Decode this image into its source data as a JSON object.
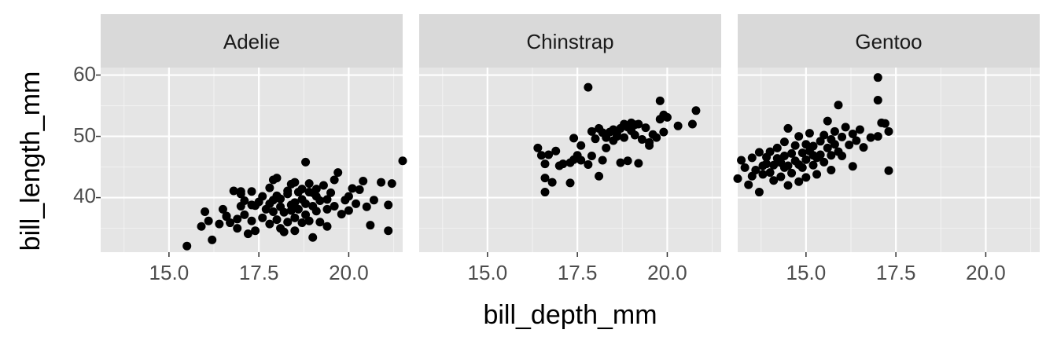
{
  "chart_data": {
    "type": "scatter",
    "xlabel": "bill_depth_mm",
    "ylabel": "bill_length_mm",
    "xlim": [
      13.1,
      21.5
    ],
    "ylim": [
      31.1,
      60.2
    ],
    "x_ticks": [
      15.0,
      17.5,
      20.0
    ],
    "x_tick_labels": [
      "15.0",
      "17.5",
      "20.0"
    ],
    "y_ticks": [
      40,
      50,
      60
    ],
    "y_tick_labels": [
      "40",
      "50",
      "60"
    ],
    "grid": true,
    "panel_background": "#e5e5e5",
    "strip_background": "#d9d9d9",
    "point_color": "#000000",
    "panels": [
      {
        "name": "Adelie",
        "points": [
          [
            15.5,
            32.1
          ],
          [
            15.9,
            35.3
          ],
          [
            16.0,
            37.7
          ],
          [
            16.1,
            36.2
          ],
          [
            16.2,
            33.1
          ],
          [
            16.4,
            35.7
          ],
          [
            16.5,
            38.1
          ],
          [
            16.6,
            37.0
          ],
          [
            16.7,
            35.9
          ],
          [
            16.8,
            41.1
          ],
          [
            16.9,
            36.5
          ],
          [
            17.0,
            38.6
          ],
          [
            17.0,
            40.6
          ],
          [
            17.1,
            39.5
          ],
          [
            17.1,
            37.2
          ],
          [
            17.2,
            34.1
          ],
          [
            17.3,
            36.2
          ],
          [
            17.3,
            41.0
          ],
          [
            17.4,
            38.7
          ],
          [
            17.4,
            34.6
          ],
          [
            17.5,
            39.3
          ],
          [
            17.6,
            36.7
          ],
          [
            17.6,
            40.2
          ],
          [
            17.7,
            38.1
          ],
          [
            17.8,
            35.7
          ],
          [
            17.8,
            41.6
          ],
          [
            17.9,
            39.6
          ],
          [
            17.9,
            37.7
          ],
          [
            18.0,
            36.4
          ],
          [
            18.0,
            40.3
          ],
          [
            18.0,
            43.2
          ],
          [
            18.1,
            38.5
          ],
          [
            18.1,
            35.0
          ],
          [
            18.1,
            39.8
          ],
          [
            18.2,
            37.6
          ],
          [
            18.2,
            34.4
          ],
          [
            18.3,
            40.6
          ],
          [
            18.3,
            41.1
          ],
          [
            18.3,
            36.0
          ],
          [
            18.4,
            38.8
          ],
          [
            18.4,
            37.9
          ],
          [
            18.5,
            42.5
          ],
          [
            18.5,
            39.2
          ],
          [
            18.5,
            36.7
          ],
          [
            18.6,
            40.9
          ],
          [
            18.6,
            38.1
          ],
          [
            18.7,
            35.9
          ],
          [
            18.7,
            39.7
          ],
          [
            18.7,
            41.4
          ],
          [
            18.8,
            37.2
          ],
          [
            18.8,
            45.8
          ],
          [
            18.8,
            39.0
          ],
          [
            18.9,
            36.2
          ],
          [
            18.9,
            42.3
          ],
          [
            19.0,
            38.6
          ],
          [
            19.0,
            33.5
          ],
          [
            19.1,
            40.2
          ],
          [
            19.1,
            41.4
          ],
          [
            19.1,
            37.8
          ],
          [
            19.2,
            36.0
          ],
          [
            19.2,
            39.5
          ],
          [
            19.3,
            42.0
          ],
          [
            19.4,
            38.1
          ],
          [
            19.4,
            35.3
          ],
          [
            19.5,
            40.8
          ],
          [
            19.6,
            38.6
          ],
          [
            19.6,
            42.9
          ],
          [
            19.7,
            44.1
          ],
          [
            19.8,
            37.3
          ],
          [
            19.9,
            39.6
          ],
          [
            20.0,
            40.2
          ],
          [
            20.0,
            37.9
          ],
          [
            20.1,
            41.5
          ],
          [
            20.2,
            39.0
          ],
          [
            20.3,
            41.3
          ],
          [
            20.4,
            42.7
          ],
          [
            20.5,
            38.5
          ],
          [
            20.6,
            35.5
          ],
          [
            20.7,
            39.6
          ],
          [
            20.9,
            42.5
          ],
          [
            21.1,
            38.8
          ],
          [
            21.1,
            34.6
          ],
          [
            21.2,
            42.3
          ],
          [
            21.5,
            46.0
          ],
          [
            17.0,
            41.0
          ],
          [
            17.9,
            42.9
          ],
          [
            18.4,
            42.2
          ],
          [
            19.0,
            40.8
          ],
          [
            16.6,
            36.9
          ],
          [
            17.3,
            38.8
          ],
          [
            18.5,
            34.6
          ],
          [
            19.4,
            39.7
          ],
          [
            17.8,
            39.0
          ],
          [
            18.9,
            40.9
          ],
          [
            16.9,
            35.0
          ]
        ]
      },
      {
        "name": "Chinstrap",
        "points": [
          [
            16.4,
            48.1
          ],
          [
            16.5,
            46.9
          ],
          [
            16.6,
            45.5
          ],
          [
            16.6,
            43.2
          ],
          [
            16.6,
            40.9
          ],
          [
            16.7,
            47.0
          ],
          [
            16.8,
            42.5
          ],
          [
            16.9,
            47.6
          ],
          [
            17.1,
            45.5
          ],
          [
            17.3,
            45.7
          ],
          [
            17.3,
            42.4
          ],
          [
            17.4,
            46.2
          ],
          [
            17.4,
            49.7
          ],
          [
            17.5,
            46.9
          ],
          [
            17.6,
            48.5
          ],
          [
            17.6,
            46.1
          ],
          [
            17.8,
            58.0
          ],
          [
            17.8,
            45.4
          ],
          [
            17.9,
            50.8
          ],
          [
            17.9,
            46.8
          ],
          [
            18.0,
            49.6
          ],
          [
            18.1,
            51.3
          ],
          [
            18.1,
            43.5
          ],
          [
            18.2,
            50.6
          ],
          [
            18.2,
            46.1
          ],
          [
            18.3,
            48.1
          ],
          [
            18.4,
            50.7
          ],
          [
            18.5,
            51.1
          ],
          [
            18.5,
            49.3
          ],
          [
            18.6,
            50.5
          ],
          [
            18.7,
            45.7
          ],
          [
            18.7,
            51.3
          ],
          [
            18.8,
            52.0
          ],
          [
            18.8,
            49.8
          ],
          [
            18.9,
            51.5
          ],
          [
            18.9,
            46.0
          ],
          [
            19.0,
            50.9
          ],
          [
            19.0,
            52.2
          ],
          [
            19.1,
            50.2
          ],
          [
            19.1,
            51.9
          ],
          [
            19.2,
            45.6
          ],
          [
            19.2,
            52.0
          ],
          [
            19.3,
            49.5
          ],
          [
            19.4,
            51.4
          ],
          [
            19.5,
            49.0
          ],
          [
            19.5,
            48.5
          ],
          [
            19.6,
            50.3
          ],
          [
            19.7,
            49.8
          ],
          [
            19.8,
            55.8
          ],
          [
            19.8,
            52.8
          ],
          [
            19.9,
            50.7
          ],
          [
            19.9,
            53.5
          ],
          [
            20.0,
            53.1
          ],
          [
            20.3,
            51.7
          ],
          [
            20.7,
            52.0
          ],
          [
            20.8,
            54.2
          ],
          [
            18.3,
            49.8
          ],
          [
            18.6,
            50.0
          ],
          [
            19.0,
            51.8
          ],
          [
            17.0,
            45.2
          ]
        ]
      },
      {
        "name": "Gentoo",
        "points": [
          [
            13.1,
            43.1
          ],
          [
            13.2,
            46.1
          ],
          [
            13.3,
            44.9
          ],
          [
            13.4,
            42.1
          ],
          [
            13.5,
            46.5
          ],
          [
            13.5,
            43.5
          ],
          [
            13.6,
            44.5
          ],
          [
            13.7,
            47.4
          ],
          [
            13.7,
            40.9
          ],
          [
            13.8,
            45.2
          ],
          [
            13.8,
            43.8
          ],
          [
            13.9,
            46.6
          ],
          [
            14.0,
            44.1
          ],
          [
            14.0,
            47.5
          ],
          [
            14.1,
            45.3
          ],
          [
            14.1,
            42.8
          ],
          [
            14.2,
            48.1
          ],
          [
            14.2,
            46.4
          ],
          [
            14.3,
            43.4
          ],
          [
            14.3,
            45.7
          ],
          [
            14.4,
            49.1
          ],
          [
            14.4,
            46.8
          ],
          [
            14.5,
            42.0
          ],
          [
            14.5,
            45.2
          ],
          [
            14.5,
            51.3
          ],
          [
            14.6,
            47.2
          ],
          [
            14.6,
            44.0
          ],
          [
            14.7,
            48.5
          ],
          [
            14.7,
            46.0
          ],
          [
            14.8,
            45.4
          ],
          [
            14.8,
            50.0
          ],
          [
            14.9,
            47.3
          ],
          [
            14.9,
            44.9
          ],
          [
            15.0,
            48.7
          ],
          [
            15.0,
            46.2
          ],
          [
            15.0,
            43.3
          ],
          [
            15.1,
            47.6
          ],
          [
            15.1,
            50.5
          ],
          [
            15.2,
            45.3
          ],
          [
            15.2,
            48.4
          ],
          [
            15.3,
            46.5
          ],
          [
            15.3,
            43.8
          ],
          [
            15.4,
            49.2
          ],
          [
            15.4,
            47.0
          ],
          [
            15.5,
            50.2
          ],
          [
            15.5,
            45.8
          ],
          [
            15.6,
            48.1
          ],
          [
            15.6,
            52.5
          ],
          [
            15.7,
            46.9
          ],
          [
            15.7,
            44.5
          ],
          [
            15.8,
            50.8
          ],
          [
            15.8,
            48.7
          ],
          [
            15.9,
            47.5
          ],
          [
            15.9,
            55.1
          ],
          [
            16.0,
            49.9
          ],
          [
            16.0,
            46.8
          ],
          [
            16.1,
            51.5
          ],
          [
            16.2,
            48.6
          ],
          [
            16.3,
            50.4
          ],
          [
            16.3,
            45.1
          ],
          [
            16.4,
            49.3
          ],
          [
            16.5,
            51.1
          ],
          [
            16.6,
            48.2
          ],
          [
            16.8,
            49.8
          ],
          [
            17.0,
            59.6
          ],
          [
            17.0,
            55.9
          ],
          [
            17.0,
            50.0
          ],
          [
            17.1,
            52.2
          ],
          [
            17.2,
            52.1
          ],
          [
            17.3,
            50.8
          ],
          [
            17.3,
            44.4
          ],
          [
            14.4,
            44.9
          ],
          [
            15.2,
            46.9
          ],
          [
            13.9,
            45.5
          ],
          [
            14.8,
            42.6
          ],
          [
            15.7,
            49.5
          ]
        ]
      }
    ]
  }
}
